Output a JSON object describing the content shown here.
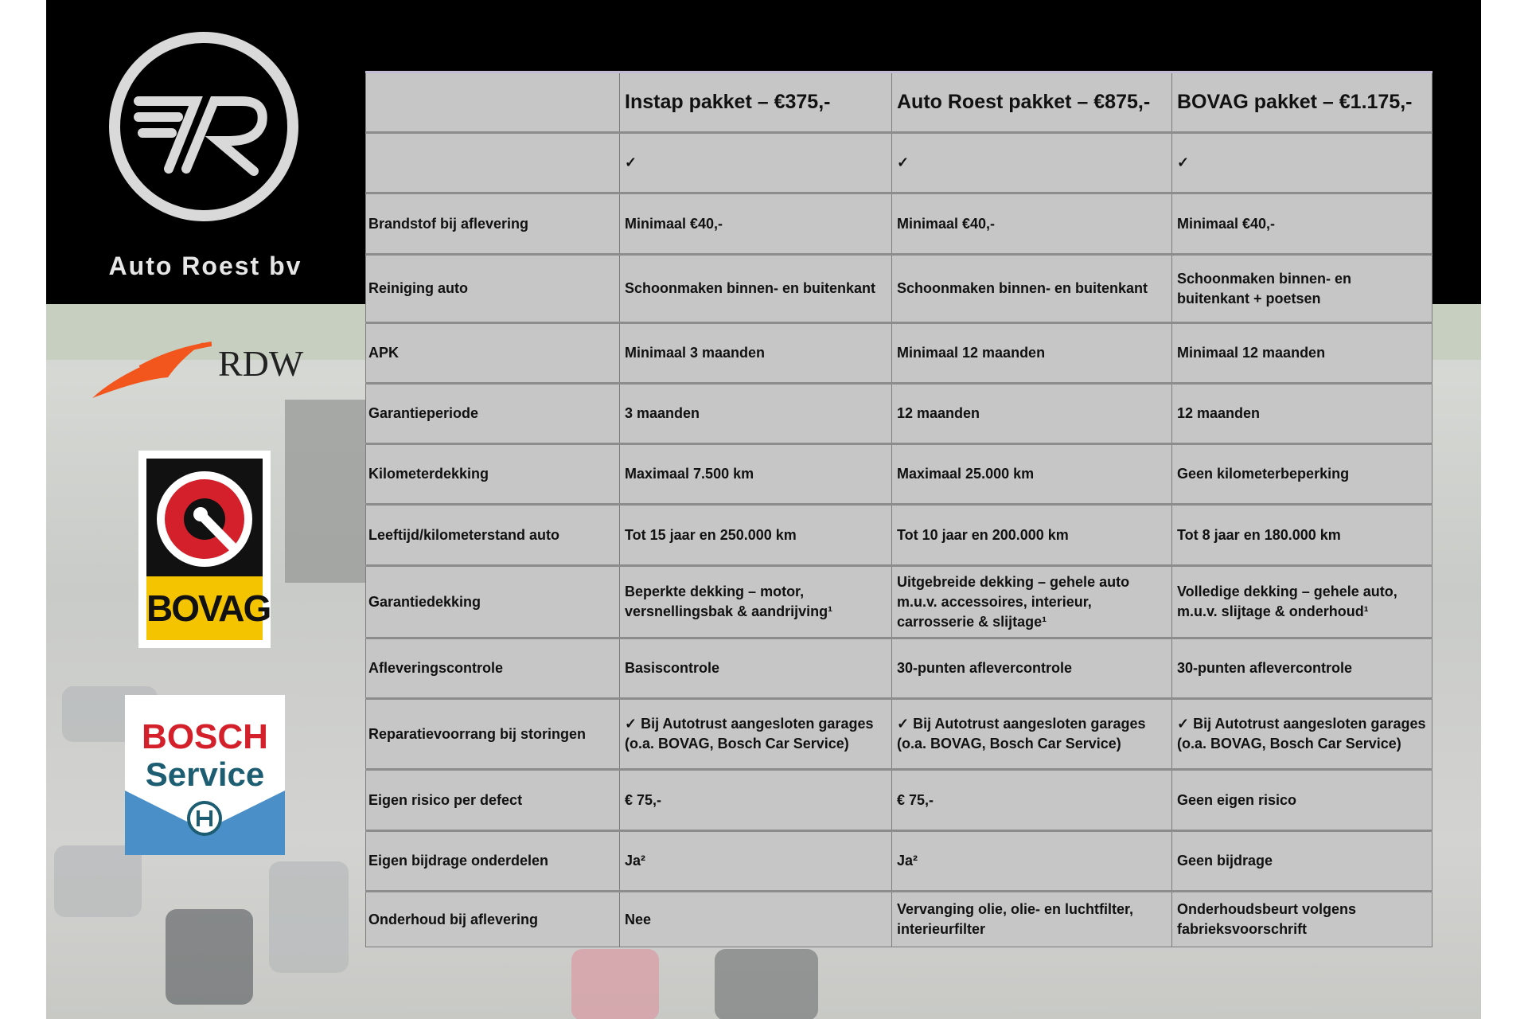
{
  "brand": {
    "name": "Auto Roest bv",
    "logo_monogram": "AR"
  },
  "partner_logos": [
    {
      "name": "RDW",
      "icon": "rdw-logo"
    },
    {
      "name": "BOVAG",
      "icon": "bovag-logo"
    },
    {
      "name": "BOSCH Service",
      "line1": "BOSCH",
      "line2": "Service",
      "icon": "bosch-service-logo"
    }
  ],
  "table": {
    "headers": [
      "",
      "Instap pakket – €375,-",
      "Auto Roest pakket – €875,-",
      "BOVAG pakket – €1.175,-"
    ],
    "rows": [
      {
        "label": "",
        "values": [
          "✓",
          "✓",
          "✓"
        ]
      },
      {
        "label": "Brandstof bij aflevering",
        "values": [
          "Minimaal €40,-",
          "Minimaal €40,-",
          "Minimaal €40,-"
        ]
      },
      {
        "label": "Reiniging auto",
        "values": [
          "Schoonmaken binnen- en buitenkant",
          "Schoonmaken binnen- en buitenkant",
          "Schoonmaken binnen- en buitenkant + poetsen"
        ]
      },
      {
        "label": "APK",
        "values": [
          "Minimaal 3 maanden",
          "Minimaal 12 maanden",
          "Minimaal 12 maanden"
        ]
      },
      {
        "label": "Garantieperiode",
        "values": [
          "3 maanden",
          "12 maanden",
          "12 maanden"
        ]
      },
      {
        "label": "Kilometerdekking",
        "values": [
          "Maximaal 7.500 km",
          "Maximaal 25.000 km",
          "Geen kilometerbeperking"
        ]
      },
      {
        "label": "Leeftijd/kilometerstand auto",
        "values": [
          "Tot 15 jaar en 250.000 km",
          "Tot 10 jaar en 200.000 km",
          "Tot 8 jaar en 180.000 km"
        ]
      },
      {
        "label": "Garantiedekking",
        "values": [
          "Beperkte dekking – motor, versnellingsbak & aandrijving¹",
          "Uitgebreide dekking – gehele auto m.u.v. accessoires, interieur, carrosserie & slijtage¹",
          "Volledige dekking – gehele auto, m.u.v. slijtage & onderhoud¹"
        ]
      },
      {
        "label": "Afleveringscontrole",
        "values": [
          "Basiscontrole",
          "30-punten aflevercontrole",
          "30-punten aflevercontrole"
        ]
      },
      {
        "label": "Reparatievoorrang bij storingen",
        "values": [
          "✓ Bij Autotrust aangesloten garages (o.a. BOVAG, Bosch Car Service)",
          "✓ Bij Autotrust aangesloten garages (o.a. BOVAG, Bosch Car Service)",
          "✓ Bij Autotrust aangesloten garages (o.a. BOVAG, Bosch Car Service)"
        ]
      },
      {
        "label": "Eigen risico per defect",
        "values": [
          "€ 75,-",
          "€ 75,-",
          "Geen eigen risico"
        ]
      },
      {
        "label": "Eigen bijdrage onderdelen",
        "values": [
          "Ja²",
          "Ja²",
          "Geen bijdrage"
        ]
      },
      {
        "label": "Onderhoud bij aflevering",
        "values": [
          "Nee",
          "Vervanging olie, olie- en luchtfilter, interieurfilter",
          "Onderhoudsbeurt volgens fabrieksvoorschrift"
        ]
      }
    ]
  }
}
